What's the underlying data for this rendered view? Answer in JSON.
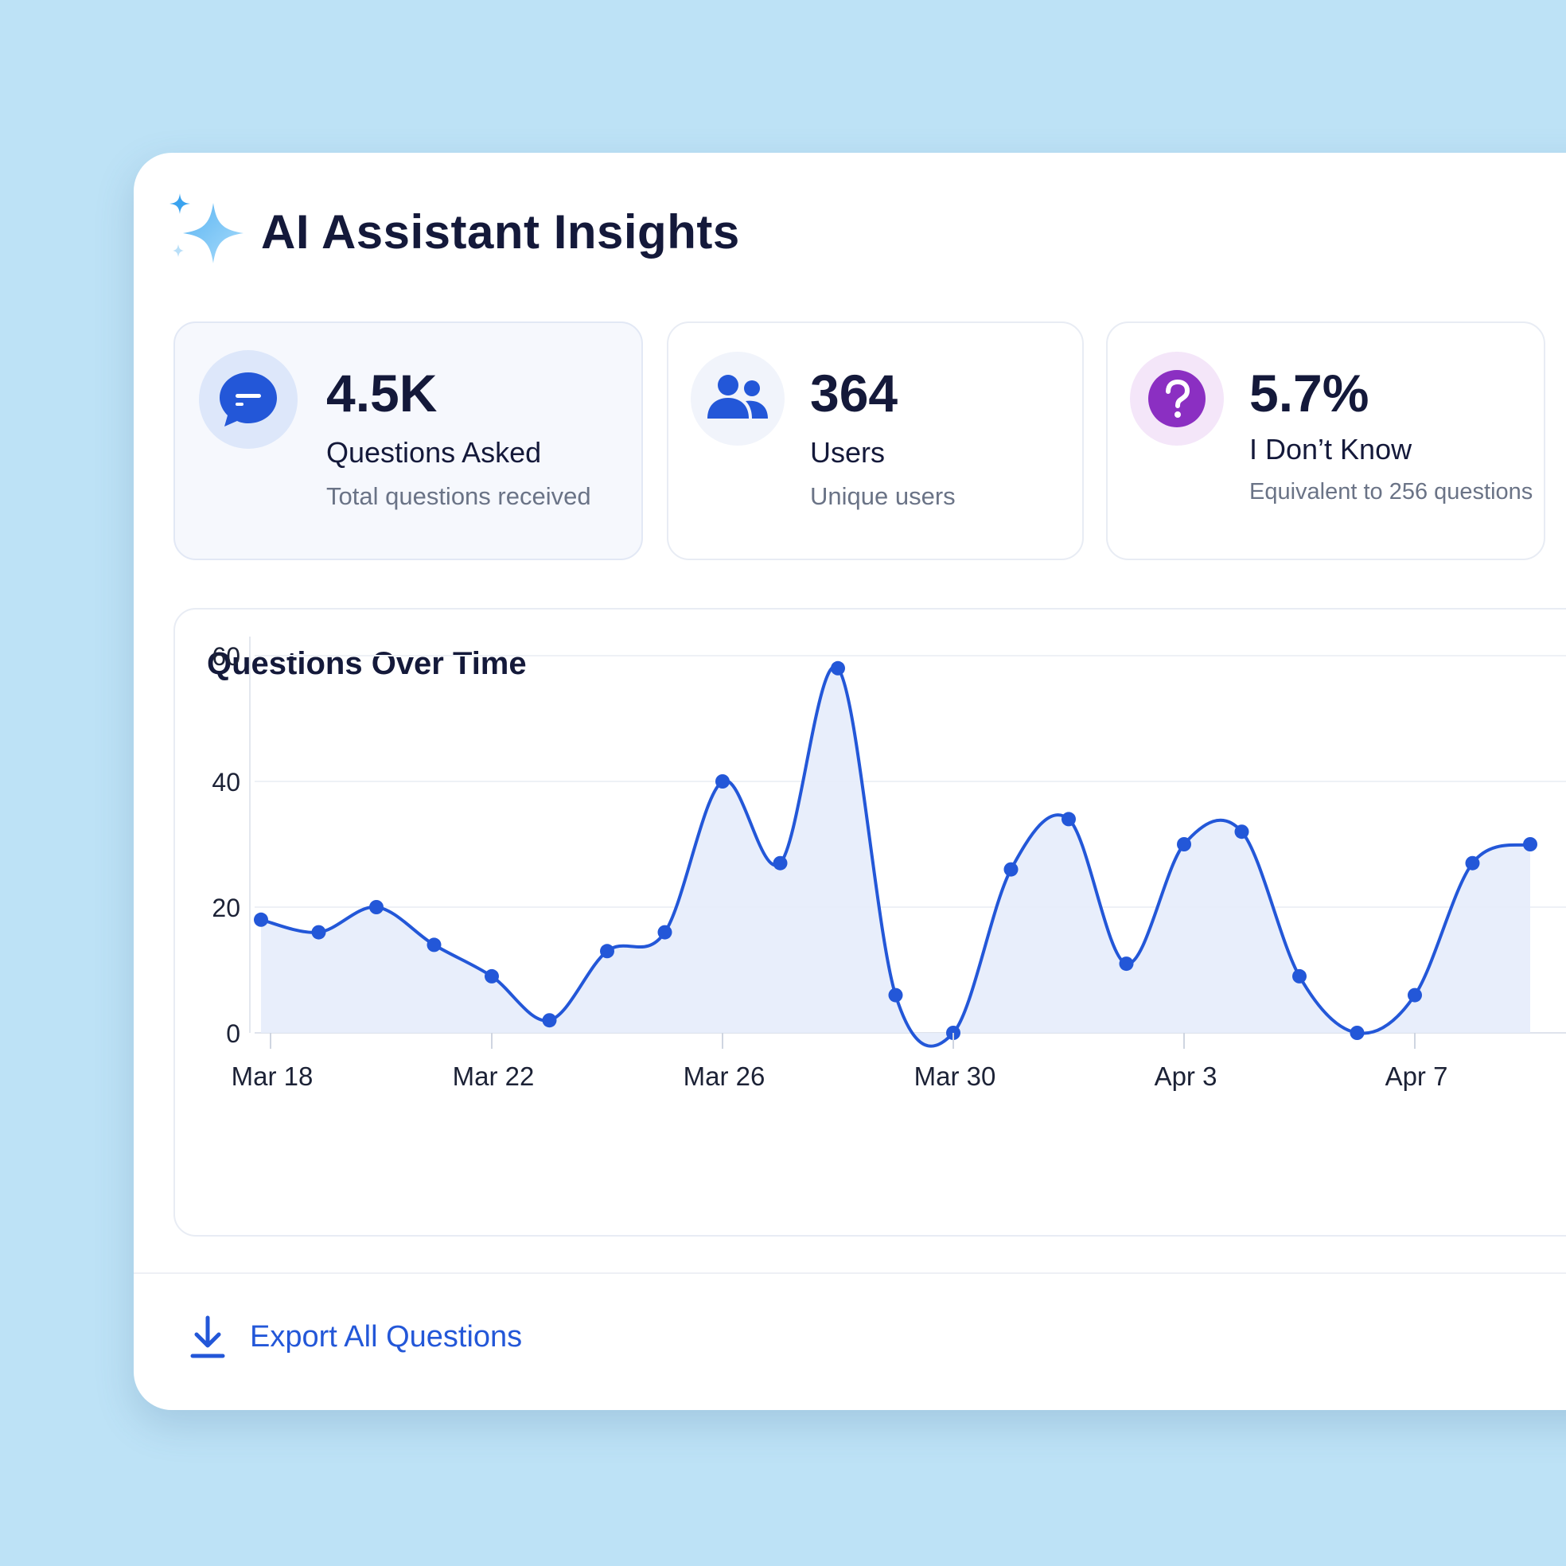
{
  "header": {
    "title": "AI Assistant Insights",
    "icon": "sparkle-icon"
  },
  "stats": [
    {
      "value": "4.5K",
      "label": "Questions Asked",
      "sub": "Total questions received",
      "icon": "chat-bubble-icon",
      "color": "#2357d8"
    },
    {
      "value": "364",
      "label": "Users",
      "sub": "Unique users",
      "icon": "users-icon",
      "color": "#2357d8"
    },
    {
      "value": "5.7%",
      "label": "I Don’t Know",
      "sub": "Equivalent to 256 questions",
      "icon": "question-icon",
      "color": "#8b2fc2"
    }
  ],
  "chart_data": {
    "type": "area",
    "title": "Questions Over Time",
    "x": [
      "Mar 18",
      "Mar 19",
      "Mar 20",
      "Mar 21",
      "Mar 22",
      "Mar 23",
      "Mar 24",
      "Mar 25",
      "Mar 26",
      "Mar 27",
      "Mar 28",
      "Mar 29",
      "Mar 30",
      "Mar 31",
      "Apr 1",
      "Apr 2",
      "Apr 3",
      "Apr 4",
      "Apr 5",
      "Apr 6",
      "Apr 7",
      "Apr 8",
      "Apr 9"
    ],
    "y": [
      18,
      16,
      20,
      14,
      9,
      2,
      13,
      16,
      40,
      27,
      58,
      6,
      0,
      26,
      34,
      11,
      30,
      32,
      9,
      0,
      6,
      27,
      30
    ],
    "x_tick_labels": [
      "Mar 18",
      "Mar 22",
      "Mar 26",
      "Mar 30",
      "Apr 3",
      "Apr 7"
    ],
    "y_ticks": [
      0,
      20,
      40,
      60
    ],
    "ylim": [
      0,
      60
    ],
    "grid": true,
    "line_color": "#2357d8",
    "fill_color": "#e6ecfb"
  },
  "footer": {
    "export_label": "Export All Questions",
    "icon": "download-icon"
  }
}
